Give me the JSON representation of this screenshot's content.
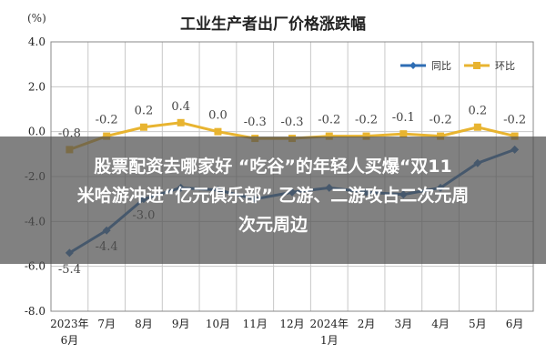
{
  "overlay": {
    "line1": "股票配资去哪家好 “吃谷”的年轻人买爆“双11",
    "line2": "米哈游冲进“亿元俱乐部” 乙游、二游攻占二次元周",
    "line3": "次元周边"
  },
  "chart_data": {
    "type": "line",
    "title": "工业生产者出厂价格涨跌幅",
    "ylabel": "(%)",
    "ylim": [
      -8.0,
      4.0
    ],
    "yticks": [
      "4.0",
      "2.0",
      "0.0",
      "-2.0",
      "-4.0",
      "-6.0",
      "-8.0"
    ],
    "categories": [
      "2023年6月",
      "7月",
      "8月",
      "9月",
      "10月",
      "11月",
      "12月",
      "2024年1月",
      "2月",
      "3月",
      "4月",
      "5月",
      "6月"
    ],
    "tick_labels_top": [
      "2023年",
      "7月",
      "8月",
      "9月",
      "10月",
      "11月",
      "12月",
      "2024年",
      "2月",
      "3月",
      "4月",
      "5月",
      "6月"
    ],
    "tick_labels_bottom": [
      "6月",
      "",
      "",
      "",
      "",
      "",
      "",
      "1月",
      "",
      "",
      "",
      "",
      ""
    ],
    "legend_position": "top-right",
    "grid": true,
    "series": [
      {
        "name": "同比",
        "color": "#2e6db4",
        "values": [
          -5.4,
          -4.4,
          -3.0,
          -2.5,
          -2.6,
          -3.0,
          -2.7,
          -2.5,
          -2.7,
          -2.8,
          -2.5,
          -1.4,
          -0.8
        ],
        "labels": [
          "-5.4",
          "-4.4",
          "-3.0",
          "",
          "",
          "",
          "",
          "",
          "",
          "",
          "",
          "",
          ""
        ]
      },
      {
        "name": "环比",
        "color": "#e8b430",
        "values": [
          -0.8,
          -0.2,
          0.2,
          0.4,
          0.0,
          -0.3,
          -0.3,
          -0.2,
          -0.2,
          -0.1,
          -0.2,
          0.2,
          -0.2
        ],
        "labels": [
          "-0.8",
          "-0.2",
          "0.2",
          "0.4",
          "0.0",
          "-0.3",
          "-0.3",
          "-0.2",
          "-0.2",
          "-0.1",
          "-0.2",
          "0.2",
          "-0.2"
        ]
      }
    ]
  }
}
